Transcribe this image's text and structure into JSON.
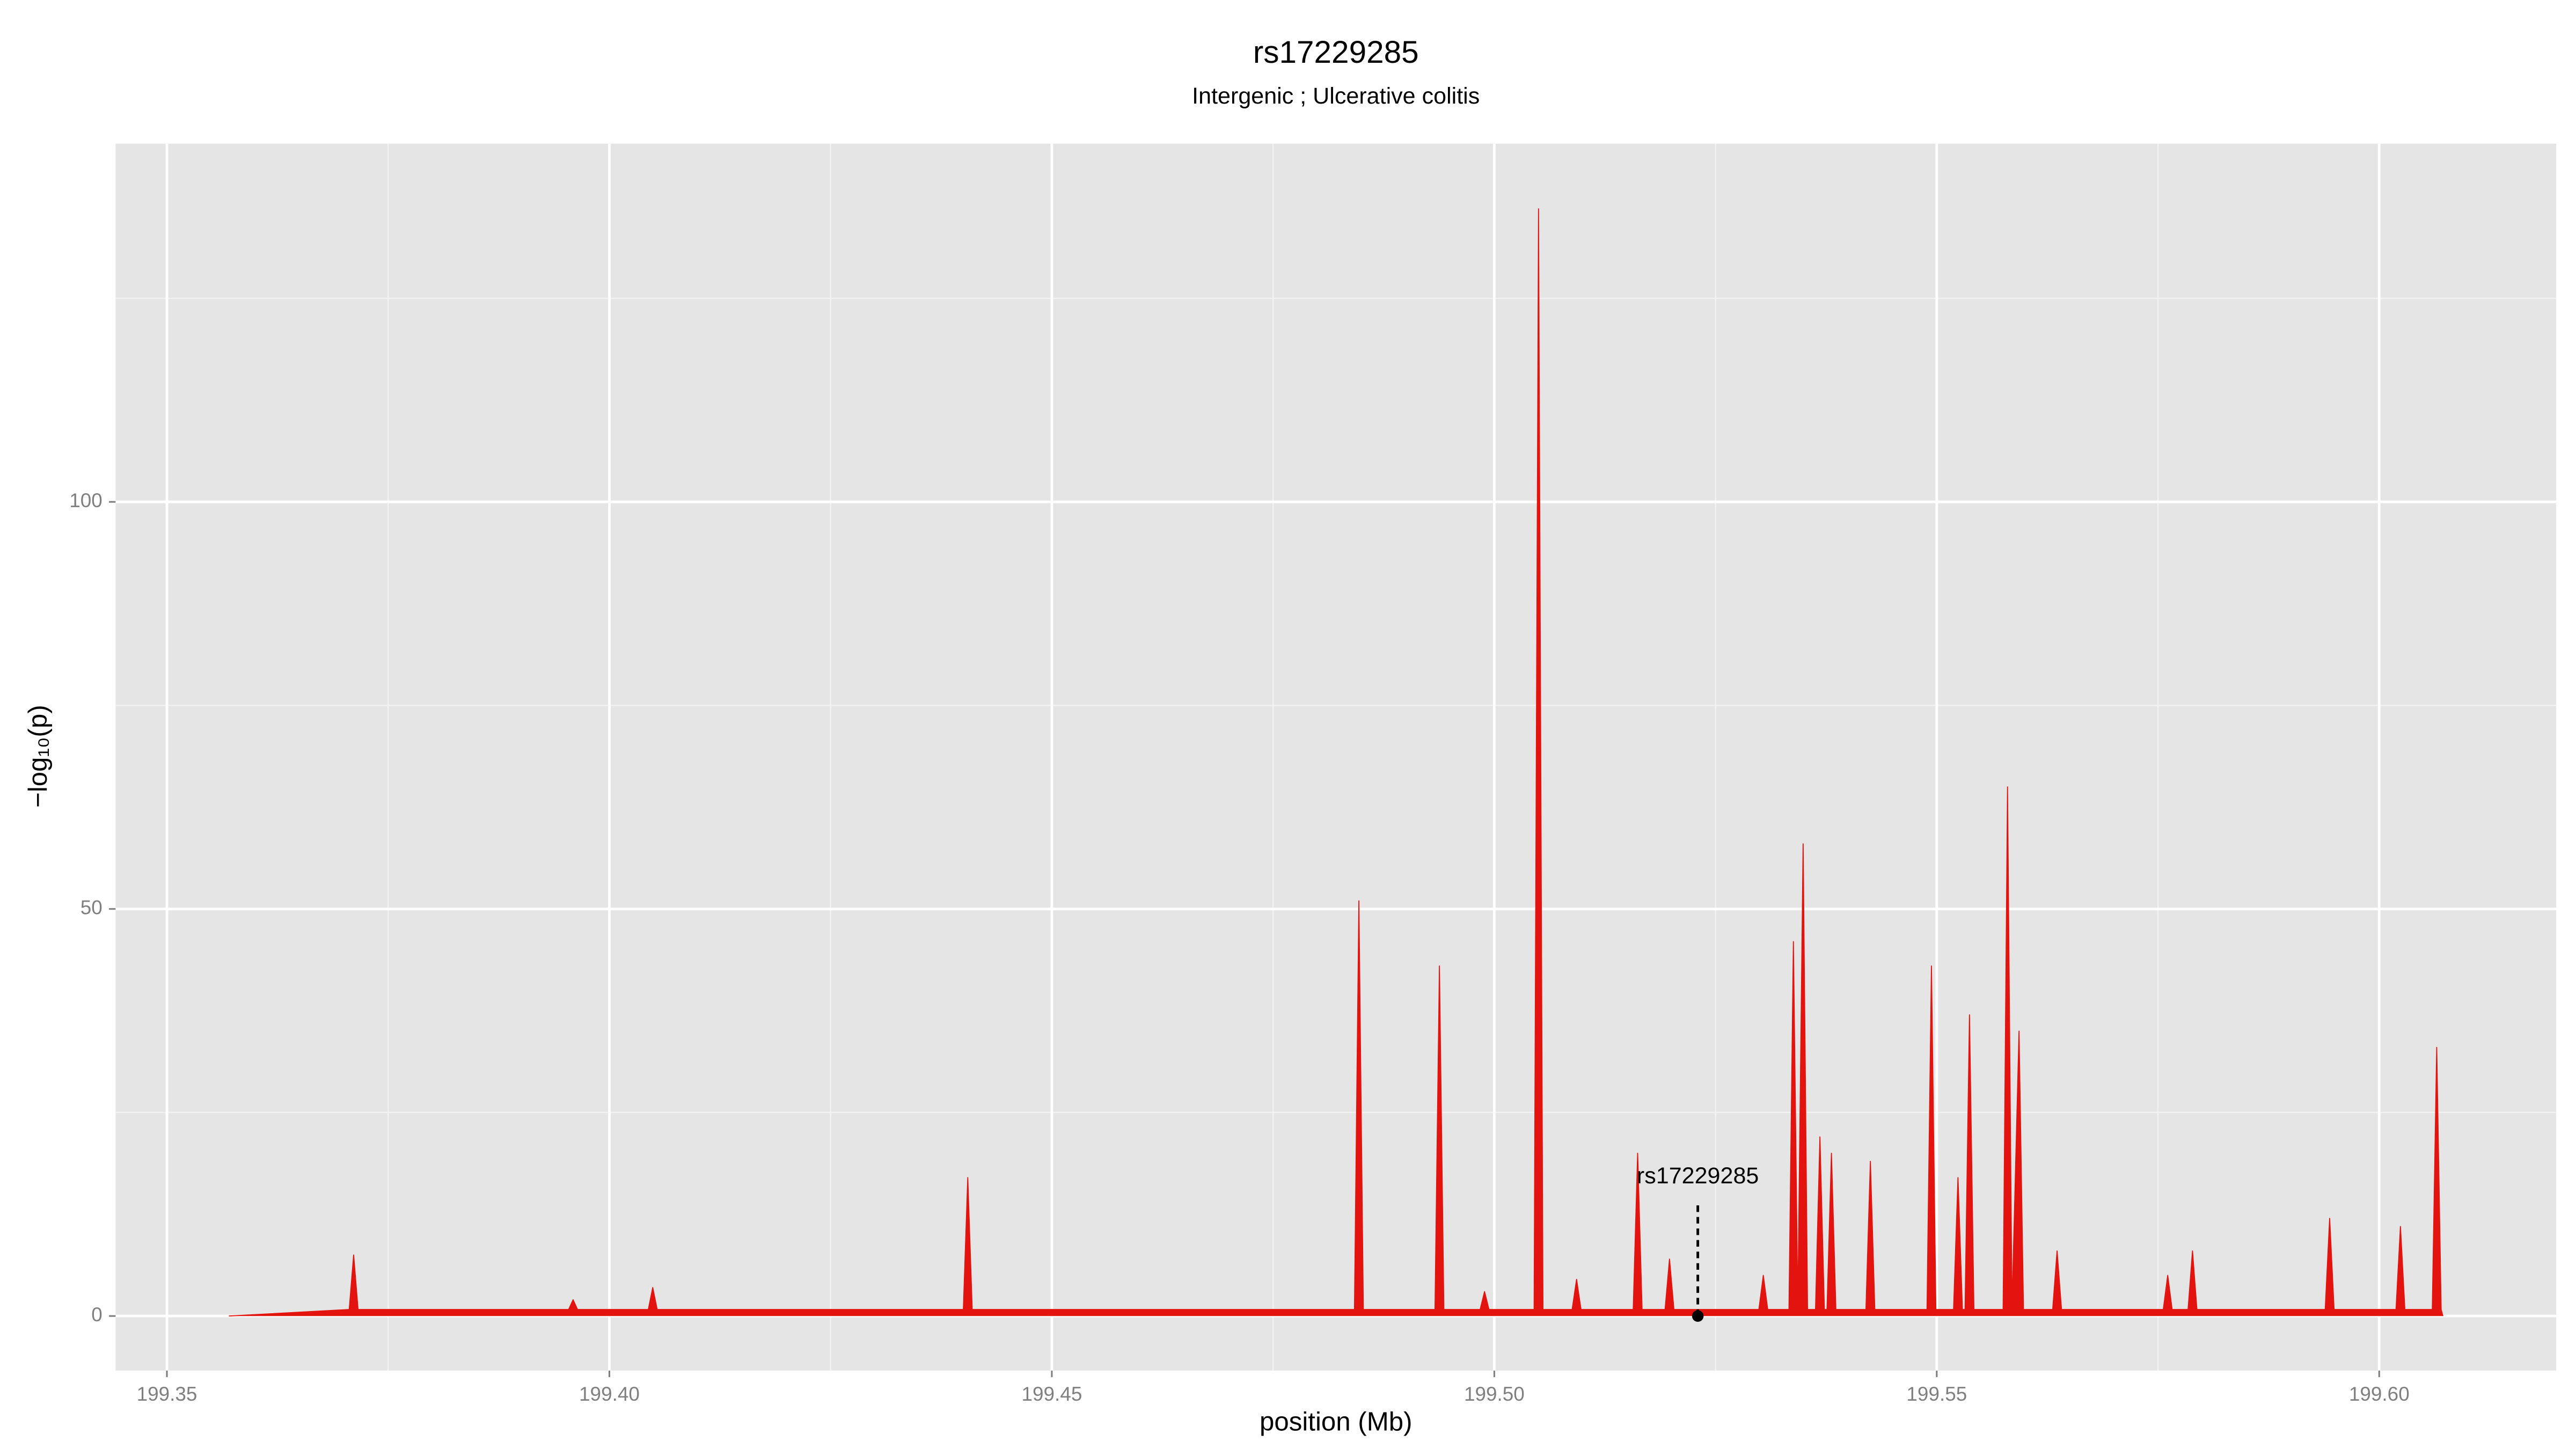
{
  "chart_data": {
    "type": "area",
    "title": "rs17229285",
    "subtitle": "Intergenic ; Ulcerative colitis",
    "xlabel": "position (Mb)",
    "ylabel": "−log₁₀(p)",
    "color": "#e3140f",
    "x": [
      199.357,
      199.3706,
      199.3711,
      199.3716,
      199.3954,
      199.3959,
      199.3964,
      199.4044,
      199.4049,
      199.4054,
      199.44,
      199.4405,
      199.441,
      199.4842,
      199.4847,
      199.4852,
      199.4933,
      199.4938,
      199.4943,
      199.4984,
      199.4989,
      199.4994,
      199.5045,
      199.505,
      199.5055,
      199.5088,
      199.5093,
      199.5098,
      199.5157,
      199.5162,
      199.5167,
      199.5193,
      199.5198,
      199.5203,
      199.5299,
      199.5304,
      199.5309,
      199.5333,
      199.5338,
      199.5343,
      199.5349,
      199.5354,
      199.5363,
      199.5368,
      199.5373,
      199.5376,
      199.5381,
      199.5386,
      199.542,
      199.5425,
      199.543,
      199.5489,
      199.5494,
      199.5499,
      199.5519,
      199.5524,
      199.5529,
      199.5532,
      199.5537,
      199.5542,
      199.5575,
      199.558,
      199.5585,
      199.5593,
      199.5598,
      199.5631,
      199.5636,
      199.5641,
      199.5756,
      199.5761,
      199.5766,
      199.5784,
      199.5789,
      199.5794,
      199.5939,
      199.5944,
      199.5949,
      199.6019,
      199.6024,
      199.6029,
      199.606,
      199.6065,
      199.607,
      199.6072
    ],
    "values": [
      0,
      0.8,
      7.5,
      0.8,
      0.8,
      2,
      0.8,
      0.8,
      3.5,
      0.8,
      0.8,
      17,
      0.8,
      0.8,
      51,
      0.8,
      0.8,
      43,
      0.8,
      0.8,
      3,
      0.8,
      0.8,
      136,
      0.8,
      0.8,
      4.5,
      0.8,
      0.8,
      20,
      0.8,
      0.8,
      7,
      0.8,
      0.8,
      5,
      0.8,
      0.8,
      46,
      0.8,
      58,
      0.8,
      0.8,
      22,
      0.8,
      0.8,
      20,
      0.8,
      0.8,
      19,
      0.8,
      0.8,
      43,
      0.8,
      0.8,
      17,
      0.8,
      0.8,
      37,
      0.8,
      0.8,
      65,
      0.8,
      35,
      0.8,
      0.8,
      8,
      0.8,
      0.8,
      5,
      0.8,
      0.8,
      8,
      0.8,
      0.8,
      12,
      0.8,
      0.8,
      11,
      0.8,
      0.8,
      33,
      0.8,
      0
    ],
    "xlim": [
      199.3442,
      199.62
    ],
    "ylim": [
      -6.7,
      144
    ],
    "xticks": [
      199.35,
      {
        "value": 199.4,
        "label": "199.40"
      },
      199.45,
      {
        "value": 199.5,
        "label": "199.50"
      },
      199.55,
      {
        "value": 199.6,
        "label": "199.60"
      }
    ],
    "yticks": [
      0,
      50,
      100
    ],
    "xminor": [
      199.375,
      199.425,
      199.475,
      199.525,
      199.575
    ],
    "yminor": [
      25,
      75,
      125
    ],
    "grid": true,
    "annotation": {
      "text": "rs17229285",
      "x": 199.523,
      "y": 0
    }
  }
}
